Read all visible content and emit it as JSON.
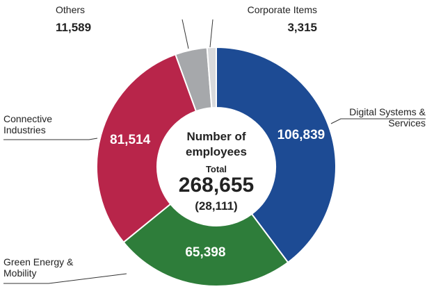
{
  "chart_data": {
    "type": "donut",
    "categories": [
      "Digital Systems & Services",
      "Green Energy & Mobility",
      "Connective Industries",
      "Others",
      "Corporate Items"
    ],
    "values": [
      106839,
      65398,
      81514,
      11589,
      3315
    ],
    "value_labels": [
      "106,839",
      "65,398",
      "81,514",
      "11,589",
      "3,315"
    ],
    "colors": [
      "#1d4b94",
      "#2e7d3a",
      "#b8254a",
      "#a6a8ab",
      "#d9dadc"
    ],
    "center_title": "Number of employees",
    "center_total_label": "Total",
    "center_total": "268,655",
    "center_sub": "(28,111)"
  }
}
